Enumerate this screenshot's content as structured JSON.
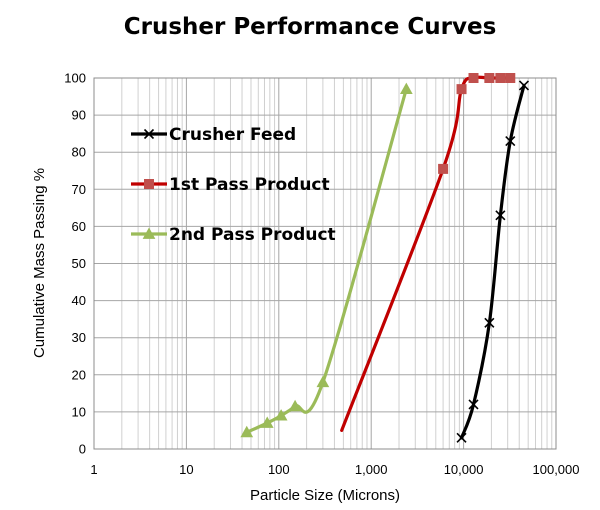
{
  "chart_data": {
    "type": "scatter",
    "title": "Crusher Performance Curves",
    "xlabel": "Particle Size (Microns)",
    "ylabel": "Cumulative Mass Passing %",
    "xscale": "log",
    "xlim": [
      1,
      100000
    ],
    "ylim": [
      0,
      100
    ],
    "xticks": [
      1,
      10,
      100,
      1000,
      10000,
      100000
    ],
    "xtick_labels": [
      "1",
      "10",
      "100",
      "1,000",
      "10,000",
      "100,000"
    ],
    "yticks": [
      0,
      10,
      20,
      30,
      40,
      50,
      60,
      70,
      80,
      90,
      100
    ],
    "grid": true,
    "legend_position": "top-left",
    "series": [
      {
        "name": "Crusher Feed",
        "color": "#000000",
        "marker": "x",
        "x": [
          9500,
          12800,
          19000,
          25000,
          32000,
          45000
        ],
        "y": [
          3,
          12,
          34,
          63,
          83,
          98
        ]
      },
      {
        "name": "1st Pass Product",
        "color": "#c0504d",
        "line_color": "#c00000",
        "marker": "square",
        "x": [
          480,
          6000,
          9500,
          12800,
          19000,
          25000,
          32000
        ],
        "y": [
          5,
          75.5,
          97,
          100,
          100,
          100,
          100
        ],
        "marker_x": [
          6000,
          9500,
          12800,
          19000,
          25000,
          32000
        ],
        "marker_y": [
          75.5,
          97,
          100,
          100,
          100,
          100
        ]
      },
      {
        "name": "2nd Pass Product",
        "color": "#9bbb59",
        "marker": "triangle",
        "x": [
          45,
          75,
          106,
          150,
          300,
          2400
        ],
        "y": [
          4.5,
          7,
          9,
          11.5,
          18,
          97
        ]
      }
    ]
  }
}
